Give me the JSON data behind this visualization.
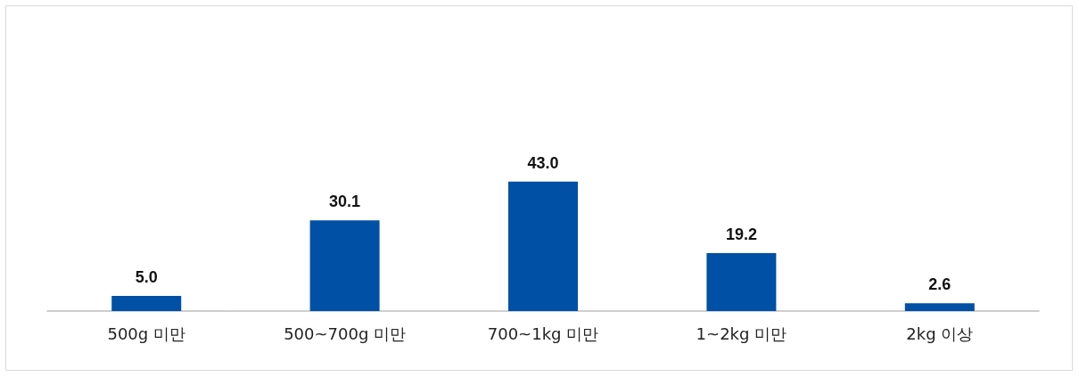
{
  "chart_data": {
    "type": "bar",
    "categories": [
      "500g 미만",
      "500~700g 미만",
      "700~1kg 미만",
      "1~2kg 미만",
      "2kg 이상"
    ],
    "values": [
      5.0,
      30.1,
      43.0,
      19.2,
      2.6
    ],
    "value_labels": [
      "5.0",
      "30.1",
      "43.0",
      "19.2",
      "2.6"
    ],
    "color": "#0050a5"
  }
}
